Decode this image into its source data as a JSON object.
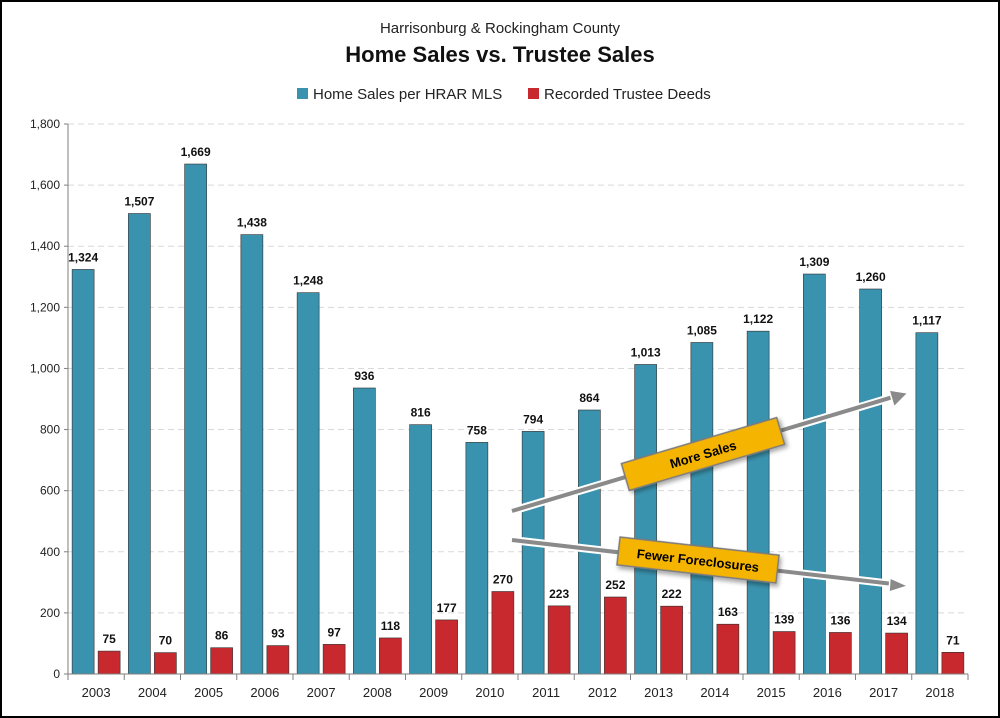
{
  "subtitle": "Harrisonburg & Rockingham County",
  "title": "Home Sales vs. Trustee Sales",
  "colors": {
    "home_sales": "#3a93ae",
    "trustee": "#c8292f",
    "callout_fill": "#f5b400",
    "arrow": "#8a8a8a",
    "grid": "#d9d9d9"
  },
  "legend": {
    "position": "top",
    "items": [
      "Home Sales per HRAR MLS",
      "Recorded Trustee Deeds"
    ]
  },
  "annotations": [
    {
      "text": "More Sales",
      "icon": "arrow-up-right-icon"
    },
    {
      "text": "Fewer Foreclosures",
      "icon": "arrow-down-right-icon"
    }
  ],
  "chart_data": {
    "type": "bar",
    "title": "Home Sales vs. Trustee Sales",
    "subtitle": "Harrisonburg & Rockingham County",
    "categories": [
      "2003",
      "2004",
      "2005",
      "2006",
      "2007",
      "2008",
      "2009",
      "2010",
      "2011",
      "2012",
      "2013",
      "2014",
      "2015",
      "2016",
      "2017",
      "2018"
    ],
    "series": [
      {
        "name": "Home Sales per HRAR MLS",
        "values": [
          1324,
          1507,
          1669,
          1438,
          1248,
          936,
          816,
          758,
          794,
          864,
          1013,
          1085,
          1122,
          1309,
          1260,
          1117
        ]
      },
      {
        "name": "Recorded Trustee Deeds",
        "values": [
          75,
          70,
          86,
          93,
          97,
          118,
          177,
          270,
          223,
          252,
          222,
          163,
          139,
          136,
          134,
          71
        ]
      }
    ],
    "value_labels": [
      [
        "1,324",
        "1,507",
        "1,669",
        "1,438",
        "1,248",
        "936",
        "816",
        "758",
        "794",
        "864",
        "1,013",
        "1,085",
        "1,122",
        "1,309",
        "1,260",
        "1,117"
      ],
      [
        "75",
        "70",
        "86",
        "93",
        "97",
        "118",
        "177",
        "270",
        "223",
        "252",
        "222",
        "163",
        "139",
        "136",
        "134",
        "71"
      ]
    ],
    "ylim": [
      0,
      1800
    ],
    "yticks": [
      0,
      200,
      400,
      600,
      800,
      1000,
      1200,
      1400,
      1600,
      1800
    ],
    "ytick_labels": [
      "0",
      "200",
      "400",
      "600",
      "800",
      "1,000",
      "1,200",
      "1,400",
      "1,600",
      "1,800"
    ],
    "grid": true,
    "xlabel": "",
    "ylabel": ""
  }
}
